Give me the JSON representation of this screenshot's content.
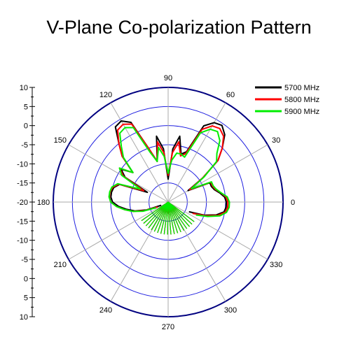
{
  "chart_data": {
    "type": "polar",
    "title": "V-Plane Co-polarization Pattern",
    "radial_scale": {
      "min": -20,
      "max": 10,
      "step": 5,
      "label_sequence": [
        "10",
        "5",
        "0",
        "-5",
        "-10",
        "-15",
        "-20",
        "-15",
        "-10",
        "-5",
        "0",
        "5",
        "10"
      ]
    },
    "angle_ticks": [
      "0",
      "30",
      "60",
      "90",
      "120",
      "150",
      "180",
      "210",
      "240",
      "270",
      "300",
      "330"
    ],
    "grid": true,
    "legend_position": "top-right",
    "series": [
      {
        "name": "5700 MHz",
        "color": "#000000",
        "angles": [
          -25,
          -20,
          -15,
          -10,
          -5,
          0,
          5,
          10,
          15,
          20,
          25,
          30,
          35,
          40,
          45,
          50,
          55,
          60,
          65,
          70,
          75,
          80,
          85,
          90,
          95,
          100,
          105,
          110,
          115,
          120,
          125,
          130,
          135,
          140,
          145,
          150,
          155,
          160,
          165,
          170,
          175,
          180,
          185,
          190,
          195,
          200,
          205
        ],
        "values": [
          -14,
          -10,
          -7,
          -5.2,
          -4.8,
          -4.8,
          -5.2,
          -6.3,
          -7.5,
          -8,
          -8,
          -14,
          -9,
          -3,
          0,
          3,
          4.5,
          4,
          2,
          -6,
          -7,
          -2.5,
          -6,
          -14,
          -6,
          -2.5,
          -9,
          -5,
          3,
          4.5,
          4,
          0,
          -3,
          -8,
          -5,
          -7,
          -14,
          -6.5,
          -5.3,
          -5,
          -5,
          -5.5,
          -7,
          -9,
          -11,
          -14,
          -18
        ]
      },
      {
        "name": "5800 MHz",
        "color": "#ff0000",
        "angles": [
          -25,
          -20,
          -15,
          -10,
          -5,
          0,
          5,
          10,
          15,
          20,
          25,
          30,
          35,
          40,
          45,
          50,
          55,
          60,
          65,
          70,
          75,
          80,
          85,
          90,
          95,
          100,
          105,
          110,
          115,
          120,
          125,
          130,
          135,
          140,
          145,
          150,
          155,
          160,
          165,
          170,
          175,
          180,
          185,
          190,
          195,
          200,
          205
        ],
        "values": [
          -13,
          -9.5,
          -6.5,
          -4.8,
          -4.4,
          -4.4,
          -4.8,
          -6,
          -7.2,
          -7.7,
          -7.7,
          -13.5,
          -9,
          -3,
          0,
          2.5,
          3.5,
          3,
          1,
          -6.5,
          -7.5,
          -4,
          -7,
          -13,
          -7,
          -4,
          -9,
          -5,
          2.5,
          3.5,
          3,
          0,
          -3,
          -8,
          -4.5,
          -6.5,
          -13,
          -6.3,
          -5,
          -4.6,
          -4.6,
          -5,
          -6.5,
          -8.5,
          -10.5,
          -13.5,
          -17
        ]
      },
      {
        "name": "5900 MHz",
        "color": "#00ee00",
        "angles": [
          -25,
          -20,
          -15,
          -10,
          -5,
          0,
          5,
          10,
          15,
          20,
          25,
          30,
          35,
          40,
          45,
          50,
          55,
          60,
          65,
          70,
          75,
          80,
          85,
          90,
          95,
          100,
          105,
          110,
          115,
          120,
          125,
          130,
          135,
          140,
          145,
          150,
          155,
          160,
          165,
          170,
          175,
          180,
          185,
          190,
          195,
          200,
          205
        ],
        "values": [
          -12,
          -9,
          -6,
          -4.5,
          -4,
          -4,
          -4.5,
          -6,
          -7,
          -7.5,
          -7.5,
          -13,
          -8.5,
          -3.5,
          -2,
          1,
          2.5,
          2,
          0,
          -7.5,
          -7,
          -7,
          -9,
          -12.5,
          -8,
          -5.5,
          -9,
          -6,
          1.5,
          2.5,
          2,
          -1,
          -3.5,
          -8,
          -4.5,
          -6,
          -12,
          -6,
          -4.8,
          -4.5,
          -4.5,
          -5,
          -6.5,
          -8.5,
          -10.5,
          -13,
          -16.5
        ]
      }
    ]
  }
}
